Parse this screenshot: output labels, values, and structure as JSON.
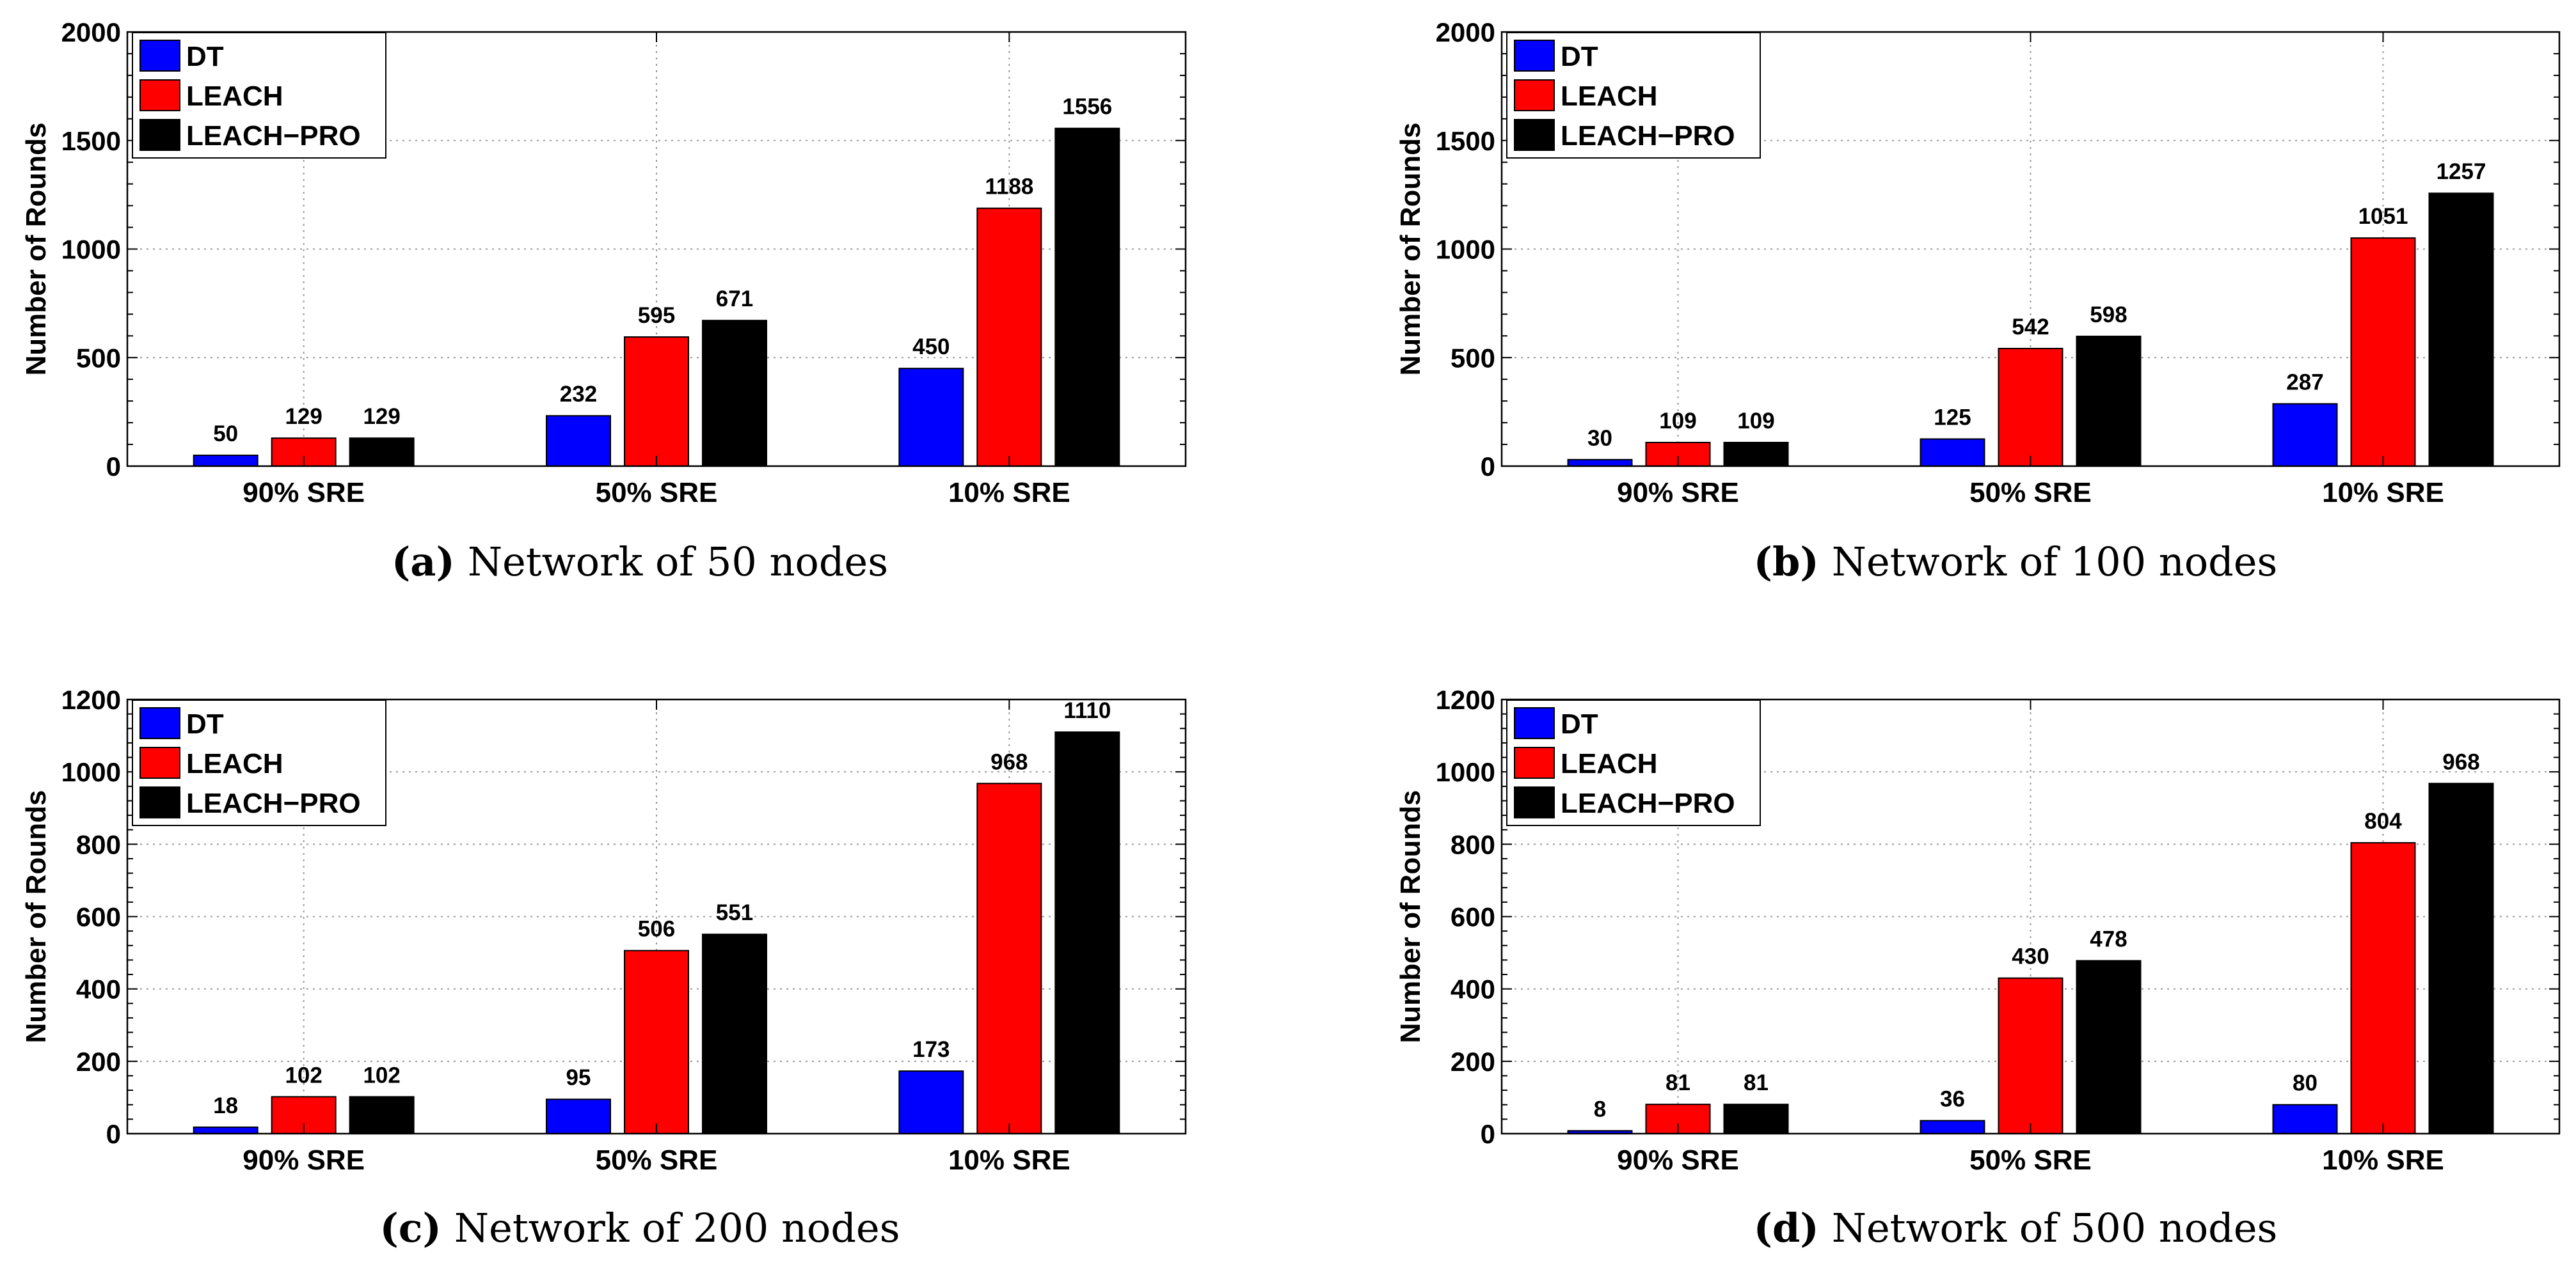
{
  "colors": {
    "DT": "#0000ff",
    "LEACH": "#ff0000",
    "LEACH-PRO": "#000000"
  },
  "chart_data": [
    {
      "type": "bar",
      "caption_letter": "(a)",
      "caption_text": "Network of 50 nodes",
      "ylabel": "Number of Rounds",
      "xlabel": "",
      "ylim": [
        0,
        2000
      ],
      "yticks": [
        0,
        500,
        1000,
        1500,
        2000
      ],
      "grid": true,
      "legend_position": "top-left",
      "categories": [
        "90% SRE",
        "50% SRE",
        "10% SRE"
      ],
      "series": [
        {
          "name": "DT",
          "values": [
            50,
            232,
            450
          ]
        },
        {
          "name": "LEACH",
          "values": [
            129,
            595,
            1188
          ]
        },
        {
          "name": "LEACH−PRO",
          "values": [
            129,
            671,
            1556
          ]
        }
      ]
    },
    {
      "type": "bar",
      "caption_letter": "(b)",
      "caption_text": "Network of 100 nodes",
      "ylabel": "Number of Rounds",
      "xlabel": "",
      "ylim": [
        0,
        2000
      ],
      "yticks": [
        0,
        500,
        1000,
        1500,
        2000
      ],
      "grid": true,
      "legend_position": "top-left",
      "categories": [
        "90% SRE",
        "50% SRE",
        "10% SRE"
      ],
      "series": [
        {
          "name": "DT",
          "values": [
            30,
            125,
            287
          ]
        },
        {
          "name": "LEACH",
          "values": [
            109,
            542,
            1051
          ]
        },
        {
          "name": "LEACH−PRO",
          "values": [
            109,
            598,
            1257
          ]
        }
      ]
    },
    {
      "type": "bar",
      "caption_letter": "(c)",
      "caption_text": "Network of 200 nodes",
      "ylabel": "Number of Rounds",
      "xlabel": "",
      "ylim": [
        0,
        1200
      ],
      "yticks": [
        0,
        200,
        400,
        600,
        800,
        1000,
        1200
      ],
      "grid": true,
      "legend_position": "top-left",
      "categories": [
        "90% SRE",
        "50% SRE",
        "10% SRE"
      ],
      "series": [
        {
          "name": "DT",
          "values": [
            18,
            95,
            173
          ]
        },
        {
          "name": "LEACH",
          "values": [
            102,
            506,
            968
          ]
        },
        {
          "name": "LEACH−PRO",
          "values": [
            102,
            551,
            1110
          ]
        }
      ]
    },
    {
      "type": "bar",
      "caption_letter": "(d)",
      "caption_text": "Network of 500 nodes",
      "ylabel": "Number of Rounds",
      "xlabel": "",
      "ylim": [
        0,
        1200
      ],
      "yticks": [
        0,
        200,
        400,
        600,
        800,
        1000,
        1200
      ],
      "grid": true,
      "legend_position": "top-left",
      "categories": [
        "90% SRE",
        "50% SRE",
        "10% SRE"
      ],
      "series": [
        {
          "name": "DT",
          "values": [
            8,
            36,
            80
          ]
        },
        {
          "name": "LEACH",
          "values": [
            81,
            430,
            804
          ]
        },
        {
          "name": "LEACH−PRO",
          "values": [
            81,
            478,
            968
          ]
        }
      ]
    }
  ]
}
